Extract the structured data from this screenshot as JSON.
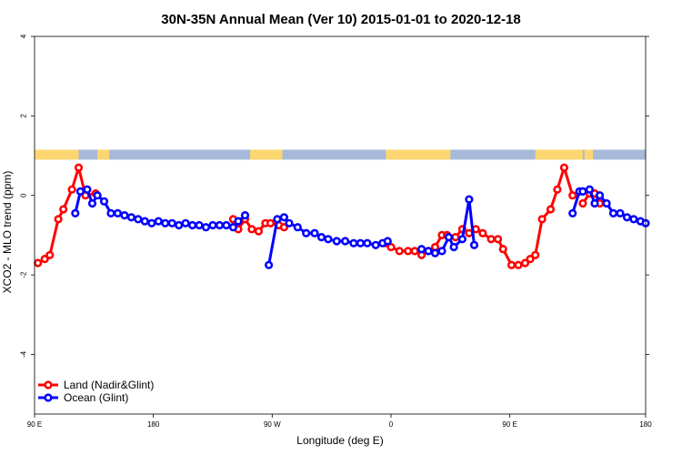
{
  "chart_data": {
    "type": "line",
    "title": "30N-35N Annual Mean (Ver 10)   2015-01-01 to 2020-12-18",
    "xlabel": "Longitude (deg E)",
    "ylabel": "XCO2 - MLO trend (ppm)",
    "xlim": [
      90,
      450
    ],
    "ylim": [
      -5.5,
      4.0
    ],
    "x_ticks": [
      {
        "value": 90,
        "label": "90 E"
      },
      {
        "value": 160,
        "label": "180"
      },
      {
        "value": 230,
        "label": "90 W"
      },
      {
        "value": 300,
        "label": "0"
      },
      {
        "value": 370,
        "label": "90 E"
      },
      {
        "value": 450,
        "label": "180"
      }
    ],
    "y_ticks": [
      {
        "value": -4,
        "label": "-4"
      },
      {
        "value": -2,
        "label": "-2"
      },
      {
        "value": 0,
        "label": "0"
      },
      {
        "value": 2,
        "label": "2"
      },
      {
        "value": 4,
        "label": "4"
      }
    ],
    "landmask": {
      "y_range": [
        0.9,
        1.15
      ],
      "land_color": "#fcd771",
      "ocean_color": "#a6b9d9",
      "land_segments": [
        [
          90,
          116
        ],
        [
          127,
          134
        ],
        [
          217,
          236
        ],
        [
          297,
          335
        ],
        [
          385,
          413
        ],
        [
          414,
          419
        ]
      ]
    },
    "legend": {
      "position": "bottom-left",
      "entries": [
        {
          "label": "Land (Nadir&Glint)",
          "color": "#ff0000"
        },
        {
          "label": "Ocean (Glint)",
          "color": "#0000ff"
        }
      ]
    },
    "series": [
      {
        "name": "Land (Nadir&Glint)",
        "color": "#ff0000",
        "segments": [
          {
            "x": [
              92,
              96,
              99,
              104,
              107,
              112,
              116,
              120,
              126
            ],
            "y": [
              -1.7,
              -1.6,
              -1.5,
              -0.6,
              -0.35,
              0.15,
              0.7,
              0.0,
              0.05
            ]
          },
          {
            "x": [
              207,
              210,
              214,
              218,
              222,
              226,
              229,
              234,
              237
            ],
            "y": [
              -0.6,
              -0.85,
              -0.6,
              -0.85,
              -0.9,
              -0.7,
              -0.7,
              -0.75,
              -0.8
            ]
          },
          {
            "x": [
              297,
              300,
              305,
              310,
              314,
              318,
              322,
              326,
              330,
              333,
              338,
              342,
              346,
              350,
              354,
              359,
              363,
              366,
              371,
              375,
              379,
              382,
              385,
              389,
              394,
              398,
              402,
              407
            ],
            "y": [
              -1.2,
              -1.3,
              -1.4,
              -1.4,
              -1.4,
              -1.5,
              -1.4,
              -1.3,
              -1.0,
              -1.0,
              -1.05,
              -0.85,
              -0.95,
              -0.85,
              -0.95,
              -1.1,
              -1.1,
              -1.35,
              -1.75,
              -1.75,
              -1.7,
              -1.6,
              -1.5,
              -0.6,
              -0.35,
              0.15,
              0.7,
              0.0
            ]
          },
          {
            "x": [
              413,
              417,
              420,
              423
            ],
            "y": [
              -0.2,
              0.05,
              0.05,
              -0.2
            ]
          }
        ]
      },
      {
        "name": "Ocean (Glint)",
        "color": "#0000ff",
        "segments": [
          {
            "x": [
              114,
              117,
              121,
              124,
              127,
              131,
              135,
              139,
              143,
              147,
              151,
              155,
              159,
              163,
              167,
              171,
              175,
              179,
              183,
              187,
              191,
              195,
              199,
              203,
              207,
              210,
              214
            ],
            "y": [
              -0.45,
              0.1,
              0.15,
              -0.2,
              0.0,
              -0.15,
              -0.45,
              -0.45,
              -0.5,
              -0.55,
              -0.6,
              -0.65,
              -0.7,
              -0.65,
              -0.7,
              -0.7,
              -0.75,
              -0.7,
              -0.75,
              -0.75,
              -0.8,
              -0.75,
              -0.75,
              -0.75,
              -0.8,
              -0.65,
              -0.5
            ]
          },
          {
            "x": [
              228,
              233,
              237,
              240,
              245,
              250,
              255,
              259,
              263,
              268,
              273,
              278,
              282,
              286,
              291,
              295,
              298
            ],
            "y": [
              -1.75,
              -0.6,
              -0.55,
              -0.7,
              -0.8,
              -0.95,
              -0.95,
              -1.05,
              -1.1,
              -1.15,
              -1.15,
              -1.2,
              -1.2,
              -1.2,
              -1.25,
              -1.2,
              -1.15
            ]
          },
          {
            "x": [
              318,
              322,
              326,
              330,
              334,
              337,
              342,
              346,
              349
            ],
            "y": [
              -1.35,
              -1.4,
              -1.45,
              -1.4,
              -1.05,
              -1.3,
              -1.1,
              -0.1,
              -1.25
            ]
          },
          {
            "x": [
              413,
              417,
              420,
              423,
              427,
              431,
              435,
              439,
              443,
              447,
              450
            ],
            "y": [
              0.1,
              0.15,
              -0.2,
              0.0,
              -0.2,
              -0.45,
              -0.45,
              -0.55,
              -0.6,
              -0.65,
              -0.7
            ]
          },
          {
            "x": [
              407,
              411,
              413
            ],
            "y": [
              -0.45,
              0.1,
              0.1
            ]
          }
        ]
      }
    ]
  }
}
